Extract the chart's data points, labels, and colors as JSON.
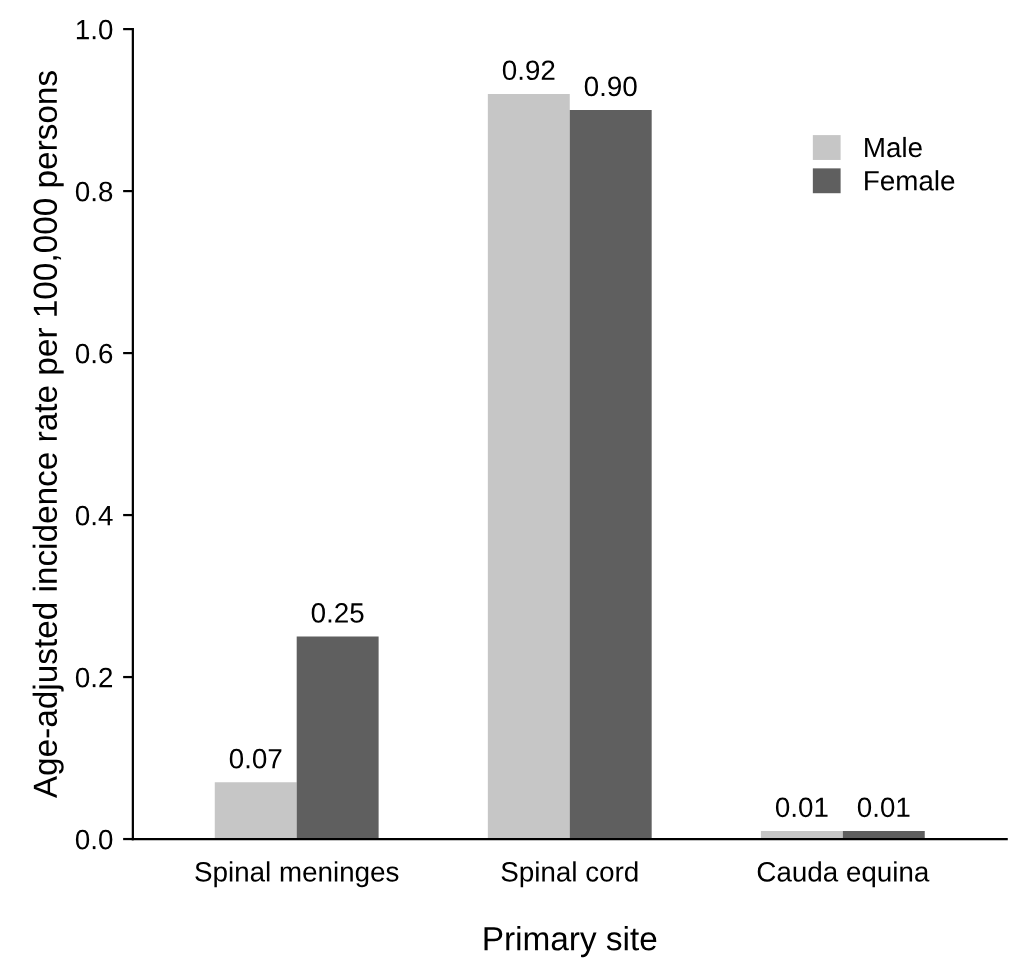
{
  "chart_data": {
    "type": "bar",
    "xlabel": "Primary site",
    "ylabel": "Age-adjusted incidence rate per 100,000 persons",
    "categories": [
      "Spinal meninges",
      "Spinal cord",
      "Cauda equina"
    ],
    "series": [
      {
        "name": "Male",
        "color": "#c6c6c6",
        "values": [
          0.07,
          0.92,
          0.01
        ],
        "value_labels": [
          "0.07",
          "0.92",
          "0.01"
        ]
      },
      {
        "name": "Female",
        "color": "#5f5f5f",
        "values": [
          0.25,
          0.9,
          0.01
        ],
        "value_labels": [
          "0.25",
          "0.90",
          "0.01"
        ]
      }
    ],
    "ylim": [
      0,
      1.0
    ],
    "yticks": [
      {
        "value": 0,
        "label": "0.0"
      },
      {
        "value": 0.2,
        "label": "0.2"
      },
      {
        "value": 0.4,
        "label": "0.4"
      },
      {
        "value": 0.6,
        "label": "0.6"
      },
      {
        "value": 0.8,
        "label": "0.8"
      },
      {
        "value": 1.0,
        "label": "1.0"
      }
    ],
    "grid": false,
    "legend": "top right"
  }
}
